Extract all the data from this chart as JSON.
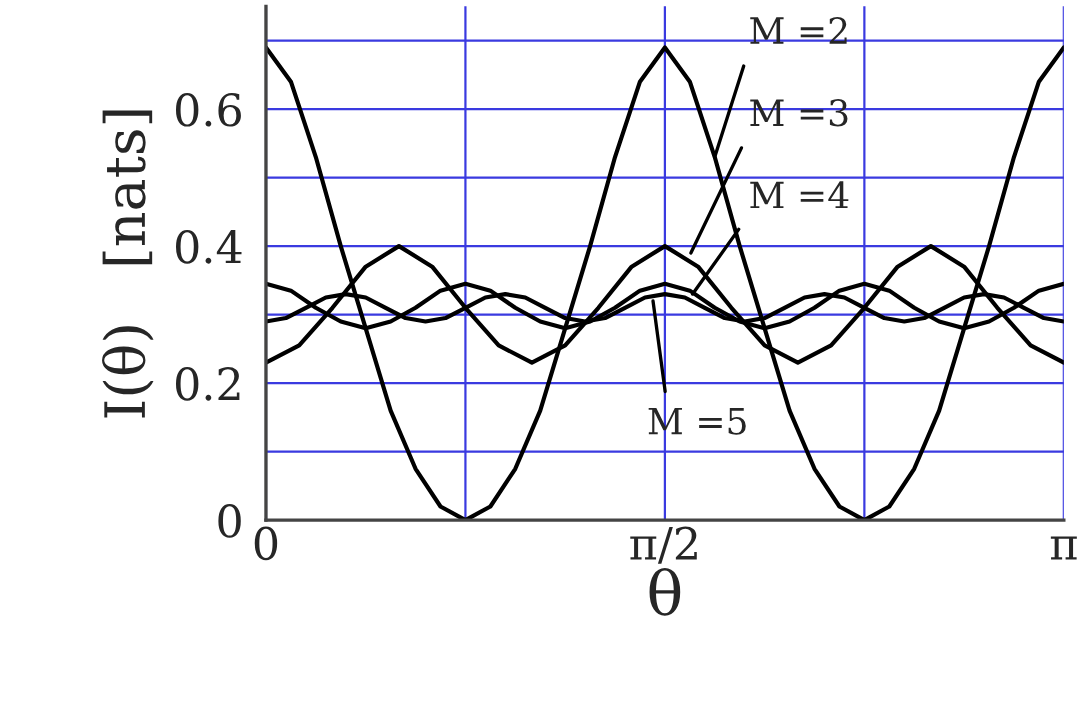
{
  "chart_data": {
    "type": "line",
    "xlabel": "θ",
    "ylabel": "I(θ)   [nats]",
    "xlim": [
      0,
      3.1416
    ],
    "ylim": [
      0,
      0.75
    ],
    "xticks": [
      0,
      {
        "value": 0.7854,
        "label": null
      },
      {
        "value": 1.5708,
        "label": "π/2"
      },
      {
        "value": 2.3562,
        "label": null
      },
      {
        "value": 3.1416,
        "label": "π"
      }
    ],
    "yticks": [
      0,
      {
        "value": 0.1,
        "label": null
      },
      0.2,
      {
        "value": 0.3,
        "label": null
      },
      0.4,
      {
        "value": 0.5,
        "label": null
      },
      0.6,
      {
        "value": 0.7,
        "label": null
      }
    ],
    "grid": true,
    "series": [
      {
        "color": "#000000",
        "x": [
          0,
          0.0982,
          0.1963,
          0.2945,
          0.3927,
          0.4909,
          0.589,
          0.6872,
          0.7854,
          0.8836,
          0.9817,
          1.0799,
          1.1781,
          1.2763,
          1.3744,
          1.4726,
          1.5708,
          1.669,
          1.7671,
          1.8653,
          1.9635,
          2.0617,
          2.1598,
          2.258,
          2.3562,
          2.4544,
          2.5525,
          2.6507,
          2.7489,
          2.8471,
          2.9452,
          3.0434,
          3.1416
        ],
        "values": [
          0.69,
          0.64,
          0.53,
          0.4,
          0.28,
          0.16,
          0.075,
          0.02,
          0,
          0.02,
          0.075,
          0.16,
          0.28,
          0.4,
          0.53,
          0.64,
          0.69,
          0.64,
          0.53,
          0.4,
          0.28,
          0.16,
          0.075,
          0.02,
          0,
          0.02,
          0.075,
          0.16,
          0.28,
          0.4,
          0.53,
          0.64,
          0.69
        ]
      },
      {
        "color": "#000000",
        "x": [
          0,
          0.1309,
          0.2618,
          0.3927,
          0.5236,
          0.6545,
          0.7854,
          0.9163,
          1.0472,
          1.1781,
          1.309,
          1.4399,
          1.5708,
          1.7017,
          1.8326,
          1.9635,
          2.0944,
          2.2253,
          2.3562,
          2.4871,
          2.618,
          2.7489,
          2.8798,
          3.0107,
          3.1416
        ],
        "values": [
          0.23,
          0.255,
          0.31,
          0.37,
          0.4,
          0.37,
          0.31,
          0.255,
          0.23,
          0.255,
          0.31,
          0.37,
          0.4,
          0.37,
          0.31,
          0.255,
          0.23,
          0.255,
          0.31,
          0.37,
          0.4,
          0.37,
          0.31,
          0.255,
          0.23
        ]
      },
      {
        "color": "#000000",
        "x": [
          0,
          0.0982,
          0.1963,
          0.2945,
          0.3927,
          0.4909,
          0.589,
          0.6872,
          0.7854,
          0.8836,
          0.9817,
          1.0799,
          1.1781,
          1.2763,
          1.3744,
          1.4726,
          1.5708,
          1.669,
          1.7671,
          1.8653,
          1.9635,
          2.0617,
          2.1598,
          2.258,
          2.3562,
          2.4544,
          2.5525,
          2.6507,
          2.7489,
          2.8471,
          2.9452,
          3.0434,
          3.1416
        ],
        "values": [
          0.345,
          0.335,
          0.31,
          0.29,
          0.28,
          0.29,
          0.31,
          0.335,
          0.345,
          0.335,
          0.31,
          0.29,
          0.28,
          0.29,
          0.31,
          0.335,
          0.345,
          0.335,
          0.31,
          0.29,
          0.28,
          0.29,
          0.31,
          0.335,
          0.345,
          0.335,
          0.31,
          0.29,
          0.28,
          0.29,
          0.31,
          0.335,
          0.345
        ]
      },
      {
        "color": "#000000",
        "x": [
          0,
          0.0785,
          0.1571,
          0.2356,
          0.3142,
          0.3927,
          0.4712,
          0.5498,
          0.6283,
          0.7069,
          0.7854,
          0.8639,
          0.9425,
          1.021,
          1.0996,
          1.1781,
          1.2566,
          1.3352,
          1.4137,
          1.4923,
          1.5708,
          1.6493,
          1.7279,
          1.8064,
          1.885,
          1.9635,
          2.042,
          2.1206,
          2.1991,
          2.2777,
          2.3562,
          2.4347,
          2.5133,
          2.5918,
          2.6704,
          2.7489,
          2.8274,
          2.906,
          2.9845,
          3.0631,
          3.1416
        ],
        "values": [
          0.29,
          0.295,
          0.31,
          0.325,
          0.33,
          0.325,
          0.31,
          0.295,
          0.29,
          0.295,
          0.31,
          0.325,
          0.33,
          0.325,
          0.31,
          0.295,
          0.29,
          0.295,
          0.31,
          0.325,
          0.33,
          0.325,
          0.31,
          0.295,
          0.29,
          0.295,
          0.31,
          0.325,
          0.33,
          0.325,
          0.31,
          0.295,
          0.29,
          0.295,
          0.31,
          0.325,
          0.33,
          0.325,
          0.31,
          0.295,
          0.29
        ]
      }
    ],
    "annotations": [
      {
        "text": "M =2",
        "x": 1.767,
        "y": 0.53
      },
      {
        "text": "M =3",
        "x": 1.673,
        "y": 0.39
      },
      {
        "text": "M =4",
        "x": 1.68,
        "y": 0.33
      },
      {
        "text": "M =5",
        "x": 1.524,
        "y": 0.32
      }
    ]
  }
}
